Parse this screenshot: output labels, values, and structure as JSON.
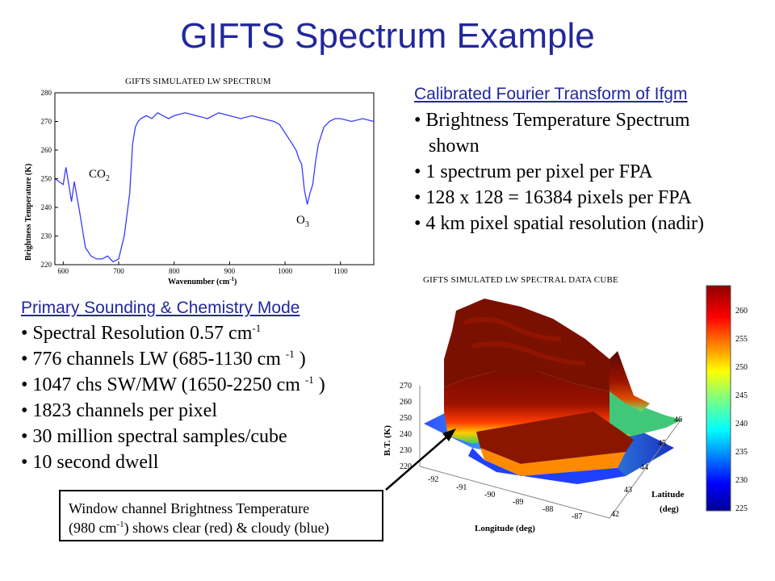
{
  "slide": {
    "title": "GIFTS Spectrum Example"
  },
  "spectrum_chart": {
    "title": "GIFTS SIMULATED LW SPECTRUM",
    "ylabel": "Brightness Temperature (K)",
    "xlabel_main": "Wavenumber (cm",
    "xlabel_sup": "-1",
    "xlabel_end": ")",
    "annotation_co2_main": "CO",
    "annotation_co2_sub": "2",
    "annotation_o3_main": "O",
    "annotation_o3_sub": "3",
    "x_ticks": [
      "600",
      "700",
      "800",
      "900",
      "1000",
      "1100"
    ],
    "y_ticks": [
      "220",
      "230",
      "240",
      "250",
      "260",
      "270",
      "280"
    ],
    "line_color": "#3a3aff"
  },
  "chart_data": [
    {
      "type": "line",
      "title": "GIFTS SIMULATED LW SPECTRUM",
      "xlabel": "Wavenumber (cm-1)",
      "ylabel": "Brightness Temperature (K)",
      "xlim": [
        585,
        1160
      ],
      "ylim": [
        220,
        280
      ],
      "grid": false,
      "x": [
        585,
        600,
        605,
        615,
        620,
        630,
        640,
        650,
        660,
        670,
        680,
        690,
        700,
        705,
        710,
        720,
        725,
        730,
        735,
        740,
        750,
        760,
        770,
        780,
        790,
        800,
        820,
        840,
        860,
        880,
        900,
        920,
        940,
        960,
        980,
        990,
        1000,
        1010,
        1020,
        1025,
        1030,
        1035,
        1040,
        1045,
        1050,
        1055,
        1060,
        1070,
        1080,
        1090,
        1100,
        1120,
        1140,
        1160
      ],
      "y": [
        250,
        248,
        254,
        242,
        249,
        238,
        226,
        223,
        222,
        222,
        223,
        221,
        222,
        226,
        230,
        245,
        262,
        268,
        270,
        271,
        272,
        271,
        273,
        272,
        271,
        272,
        273,
        272,
        271,
        273,
        272,
        271,
        272,
        271,
        270,
        269,
        266,
        263,
        260,
        257,
        255,
        246,
        241,
        245,
        248,
        256,
        262,
        268,
        270,
        271,
        271,
        270,
        271,
        270
      ]
    },
    {
      "type": "heatmap",
      "title": "GIFTS SIMULATED LW SPECTRAL DATA CUBE",
      "xlabel": "Longitude (deg)",
      "ylabel": "Latitude (deg)",
      "zlabel": "B.T. (K)",
      "x_ticks": [
        "-92",
        "-91",
        "-90",
        "-89",
        "-88",
        "-87"
      ],
      "y_ticks": [
        "42",
        "43",
        "44",
        "45",
        "46"
      ],
      "z_ticks": [
        "220",
        "230",
        "240",
        "250",
        "260",
        "270"
      ],
      "colorbar_ticks": [
        "225",
        "230",
        "235",
        "240",
        "245",
        "250",
        "255",
        "260"
      ],
      "colorbar_range": [
        222,
        264
      ]
    }
  ],
  "cube_chart": {
    "title": "GIFTS SIMULATED LW SPECTRAL DATA CUBE",
    "zlabel": "B.T. (K)",
    "xlabel": "Longitude (deg)",
    "ylabel_line1": "Latitude",
    "ylabel_line2": "(deg)",
    "lon_ticks": [
      "-92",
      "-91",
      "-90",
      "-89",
      "-88",
      "-87"
    ],
    "lat_ticks": [
      "42",
      "43",
      "44",
      "45",
      "46"
    ],
    "bt_ticks": [
      "220",
      "230",
      "240",
      "250",
      "260",
      "270"
    ],
    "colorbar_ticks": [
      "260",
      "255",
      "250",
      "245",
      "240",
      "235",
      "230",
      "225"
    ]
  },
  "right_text": {
    "heading": "Calibrated Fourier Transform of Ifgm",
    "bullets": [
      "Brightness Temperature Spectrum",
      "shown",
      "1 spectrum per pixel per FPA",
      "128 x 128 = 16384 pixels per FPA",
      "4 km pixel spatial resolution (nadir)"
    ]
  },
  "left_text": {
    "heading": "Primary Sounding & Chemistry Mode",
    "b1_main": "Spectral Resolution 0.57 cm",
    "b1_sup": "-1",
    "b2_main": "776 channels LW (685-1130 cm ",
    "b2_sup": "-1",
    "b2_end": " )",
    "b3_main": "1047 chs SW/MW (1650-2250 cm ",
    "b3_sup": "-1",
    "b3_end": " )",
    "b4": "1823 channels per pixel",
    "b5": "30 million spectral samples/cube",
    "b6": "10 second dwell"
  },
  "callout": {
    "line1": "Window channel Brightness Temperature",
    "line2_a": "(980 cm",
    "line2_sup": "-1",
    "line2_b": ") shows clear (red) & cloudy (blue)"
  }
}
